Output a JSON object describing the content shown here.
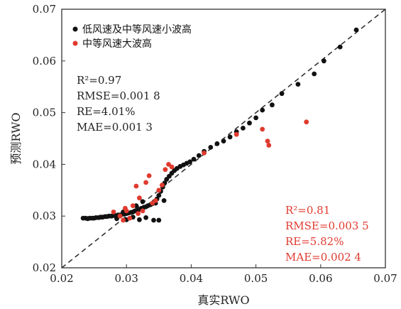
{
  "chart_data": {
    "type": "scatter",
    "xlabel": "真实RWO",
    "ylabel": "预测RWO",
    "xlim": [
      0.02,
      0.07
    ],
    "ylim": [
      0.02,
      0.07
    ],
    "x_ticks": [
      "0.02",
      "0.03",
      "0.04",
      "0.05",
      "0.06",
      "0.07"
    ],
    "y_ticks": [
      "0.02",
      "0.03",
      "0.04",
      "0.05",
      "0.06",
      "0.07"
    ],
    "grid": false,
    "legend_position": "top-left",
    "reference_line": {
      "style": "dashed",
      "color": "#333333",
      "from": [
        0.02,
        0.02
      ],
      "to": [
        0.07,
        0.07
      ]
    },
    "series": [
      {
        "name": "低风速及中等风速小波高",
        "color": "#111111",
        "points": [
          [
            0.0233,
            0.0296
          ],
          [
            0.0237,
            0.0296
          ],
          [
            0.024,
            0.0295
          ],
          [
            0.0243,
            0.0296
          ],
          [
            0.0247,
            0.0296
          ],
          [
            0.025,
            0.0296
          ],
          [
            0.0253,
            0.0297
          ],
          [
            0.0257,
            0.0297
          ],
          [
            0.026,
            0.0298
          ],
          [
            0.0263,
            0.0298
          ],
          [
            0.0267,
            0.0299
          ],
          [
            0.027,
            0.0299
          ],
          [
            0.0273,
            0.03
          ],
          [
            0.0277,
            0.03
          ],
          [
            0.028,
            0.0301
          ],
          [
            0.0283,
            0.0301
          ],
          [
            0.0287,
            0.0302
          ],
          [
            0.029,
            0.0302
          ],
          [
            0.0293,
            0.0303
          ],
          [
            0.0297,
            0.0304
          ],
          [
            0.03,
            0.0305
          ],
          [
            0.0303,
            0.0306
          ],
          [
            0.0307,
            0.0307
          ],
          [
            0.031,
            0.0308
          ],
          [
            0.0313,
            0.031
          ],
          [
            0.0317,
            0.0311
          ],
          [
            0.032,
            0.0313
          ],
          [
            0.0323,
            0.0315
          ],
          [
            0.0327,
            0.0317
          ],
          [
            0.033,
            0.0318
          ],
          [
            0.0333,
            0.032
          ],
          [
            0.0337,
            0.0322
          ],
          [
            0.034,
            0.0324
          ],
          [
            0.0343,
            0.0328
          ],
          [
            0.0347,
            0.0333
          ],
          [
            0.035,
            0.034
          ],
          [
            0.0353,
            0.0348
          ],
          [
            0.0356,
            0.0356
          ],
          [
            0.0359,
            0.0364
          ],
          [
            0.0362,
            0.0371
          ],
          [
            0.0366,
            0.0377
          ],
          [
            0.037,
            0.0383
          ],
          [
            0.0374,
            0.0388
          ],
          [
            0.0378,
            0.0392
          ],
          [
            0.0383,
            0.0396
          ],
          [
            0.0388,
            0.0399
          ],
          [
            0.0393,
            0.0402
          ],
          [
            0.0398,
            0.0405
          ],
          [
            0.0404,
            0.041
          ],
          [
            0.0412,
            0.0417
          ],
          [
            0.042,
            0.0425
          ],
          [
            0.043,
            0.0433
          ],
          [
            0.044,
            0.044
          ],
          [
            0.045,
            0.0445
          ],
          [
            0.046,
            0.0453
          ],
          [
            0.047,
            0.0463
          ],
          [
            0.048,
            0.047
          ],
          [
            0.049,
            0.048
          ],
          [
            0.05,
            0.049
          ],
          [
            0.051,
            0.0505
          ],
          [
            0.0525,
            0.0515
          ],
          [
            0.054,
            0.0537
          ],
          [
            0.0565,
            0.0555
          ],
          [
            0.059,
            0.0575
          ],
          [
            0.0605,
            0.06
          ],
          [
            0.063,
            0.0627
          ],
          [
            0.0655,
            0.066
          ],
          [
            0.0285,
            0.0295
          ],
          [
            0.03,
            0.0293
          ],
          [
            0.031,
            0.0298
          ],
          [
            0.032,
            0.0293
          ],
          [
            0.033,
            0.0297
          ],
          [
            0.0342,
            0.0292
          ],
          [
            0.035,
            0.0292
          ],
          [
            0.0295,
            0.0308
          ],
          [
            0.0315,
            0.032
          ],
          [
            0.0325,
            0.0328
          ],
          [
            0.0358,
            0.033
          ],
          [
            0.0345,
            0.0325
          ]
        ]
      },
      {
        "name": "中等风速大波高",
        "color": "#e03a2f",
        "points": [
          [
            0.028,
            0.0308
          ],
          [
            0.029,
            0.03
          ],
          [
            0.0295,
            0.0292
          ],
          [
            0.03,
            0.031
          ],
          [
            0.0305,
            0.0296
          ],
          [
            0.031,
            0.032
          ],
          [
            0.0315,
            0.0358
          ],
          [
            0.032,
            0.0335
          ],
          [
            0.0325,
            0.031
          ],
          [
            0.033,
            0.0365
          ],
          [
            0.0335,
            0.0378
          ],
          [
            0.034,
            0.0325
          ],
          [
            0.0345,
            0.033
          ],
          [
            0.035,
            0.035
          ],
          [
            0.0355,
            0.036
          ],
          [
            0.036,
            0.039
          ],
          [
            0.0365,
            0.04
          ],
          [
            0.037,
            0.0395
          ],
          [
            0.042,
            0.0422
          ],
          [
            0.047,
            0.0458
          ],
          [
            0.051,
            0.0468
          ],
          [
            0.0518,
            0.0445
          ],
          [
            0.052,
            0.0437
          ],
          [
            0.0578,
            0.0482
          ],
          [
            0.0298,
            0.0315
          ],
          [
            0.0318,
            0.0305
          ]
        ]
      }
    ],
    "annotations": [
      {
        "lines": [
          "R²=0.97",
          "RMSE=0.001 8",
          "RE=4.01%",
          "MAE=0.001 3"
        ],
        "color": "#222222"
      },
      {
        "lines": [
          "R²=0.81",
          "RMSE=0.003 5",
          "RE=5.82%",
          "MAE=0.002 4"
        ],
        "color": "#e03a2f"
      }
    ]
  }
}
